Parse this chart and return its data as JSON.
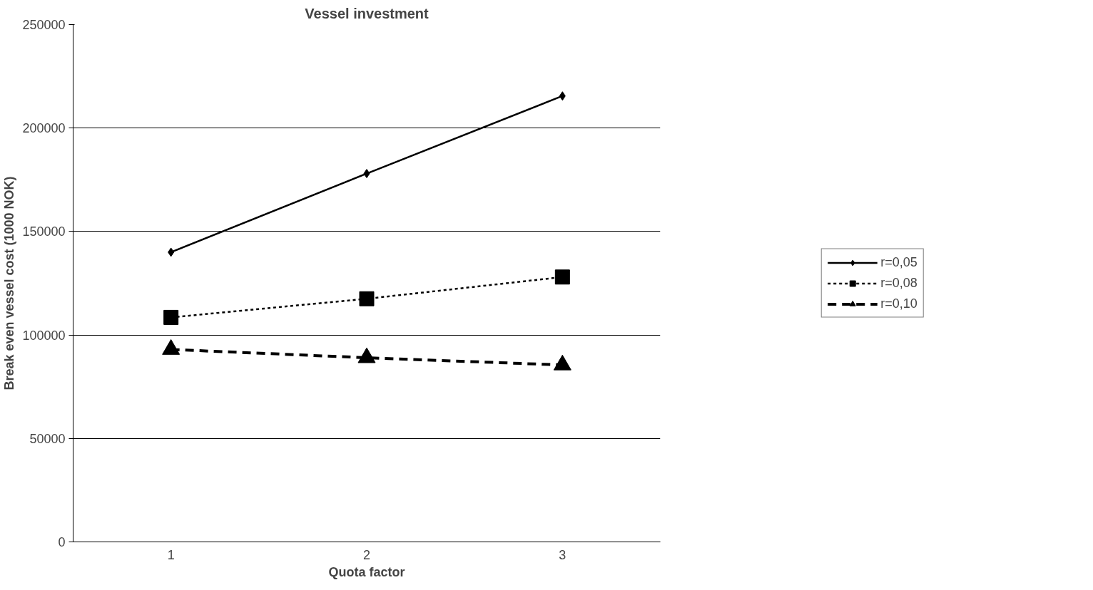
{
  "chart_data": {
    "type": "line",
    "title": "Vessel investment",
    "xlabel": "Quota factor",
    "ylabel": "Break even vessel cost (1000 NOK)",
    "categories": [
      "1",
      "2",
      "3"
    ],
    "series": [
      {
        "name": "r=0,05",
        "color": "#000000",
        "values": [
          140000,
          178000,
          215500
        ],
        "marker": "diamond",
        "line_style": "solid"
      },
      {
        "name": "r=0,08",
        "color": "#000000",
        "values": [
          108500,
          117500,
          128000
        ],
        "marker": "square",
        "line_style": "dotted"
      },
      {
        "name": "r=0,10",
        "color": "#000000",
        "values": [
          93000,
          89000,
          85500
        ],
        "marker": "triangle",
        "line_style": "dashed"
      }
    ],
    "ylim": [
      0,
      250000
    ],
    "yticks": [
      0,
      50000,
      100000,
      150000,
      200000,
      250000
    ],
    "grid": "y",
    "legend": "right"
  }
}
